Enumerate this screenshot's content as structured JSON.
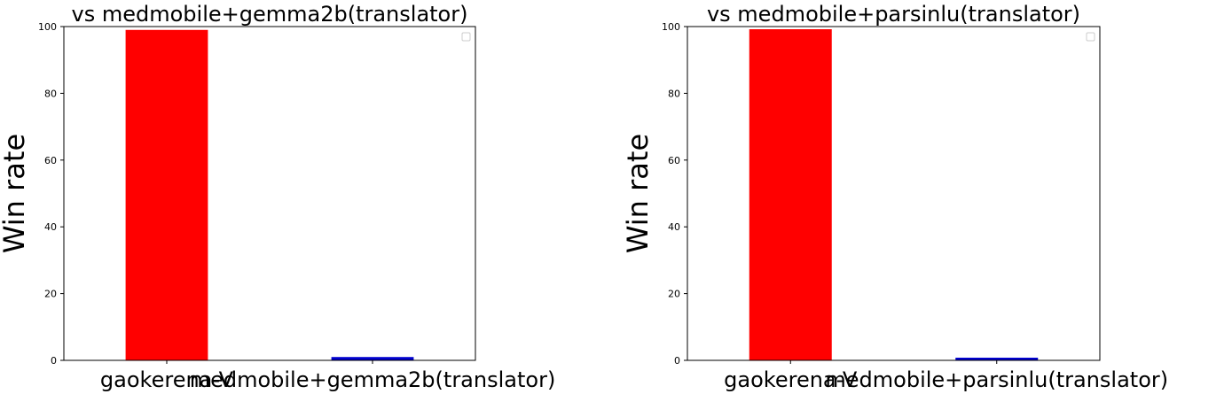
{
  "chart_data": [
    {
      "type": "bar",
      "title": "vs medmobile+gemma2b(translator)",
      "xlabel": "",
      "ylabel": "Win rate",
      "categories": [
        "gaokerena-V",
        "medmobile+gemma2b(translator)"
      ],
      "values": [
        99,
        1
      ],
      "colors": [
        "#ff0000",
        "#0000cd"
      ],
      "ylim": [
        0,
        100
      ],
      "yticks": [
        "0",
        "20",
        "40",
        "60",
        "80",
        "100"
      ],
      "grid": false,
      "legend": "top-right, empty"
    },
    {
      "type": "bar",
      "title": "vs medmobile+parsinlu(translator)",
      "xlabel": "",
      "ylabel": "Win rate",
      "categories": [
        "gaokerena-V",
        "medmobile+parsinlu(translator)"
      ],
      "values": [
        99.2,
        0.8
      ],
      "colors": [
        "#ff0000",
        "#0000cd"
      ],
      "ylim": [
        0,
        100
      ],
      "yticks": [
        "0",
        "20",
        "40",
        "60",
        "80",
        "100"
      ],
      "grid": false,
      "legend": "top-right, empty"
    }
  ]
}
